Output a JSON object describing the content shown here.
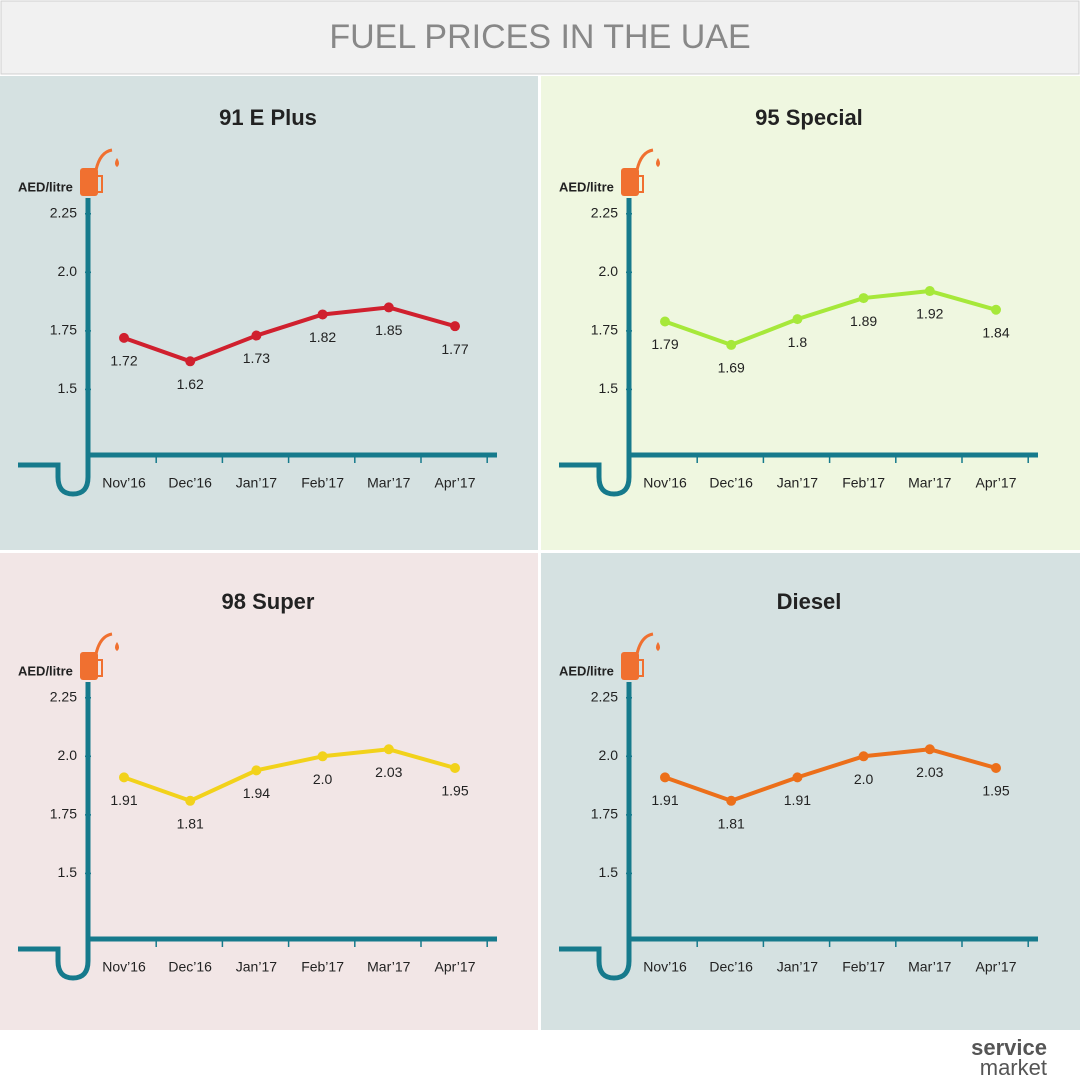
{
  "title": "FUEL PRICES IN THE UAE",
  "brand": [
    "service",
    "market"
  ],
  "chart_data": [
    {
      "type": "line",
      "title": "91 E Plus",
      "y_label": "AED/litre",
      "color": "#d0202e",
      "categories": [
        "Nov’16",
        "Dec’16",
        "Jan’17",
        "Feb’17",
        "Mar’17",
        "Apr’17"
      ],
      "values": [
        1.72,
        1.62,
        1.73,
        1.82,
        1.85,
        1.77
      ],
      "ylim": [
        1.22,
        2.33
      ],
      "yticks": [
        1.5,
        1.75,
        {
          "value": 2,
          "label": "2.0"
        },
        2.25
      ],
      "grid": false
    },
    {
      "type": "line",
      "title": "95 Special",
      "y_label": "AED/litre",
      "color": "#a6e83a",
      "categories": [
        "Nov’16",
        "Dec’16",
        "Jan’17",
        "Feb’17",
        "Mar’17",
        "Apr’17"
      ],
      "values": [
        1.79,
        1.69,
        1.8,
        1.89,
        1.92,
        1.84
      ],
      "ylim": [
        1.22,
        2.33
      ],
      "yticks": [
        1.5,
        1.75,
        {
          "value": 2,
          "label": "2.0"
        },
        2.25
      ],
      "grid": false
    },
    {
      "type": "line",
      "title": "98 Super",
      "y_label": "AED/litre",
      "color": "#f2d21b",
      "categories": [
        "Nov’16",
        "Dec’16",
        "Jan’17",
        "Feb’17",
        "Mar’17",
        "Apr’17"
      ],
      "values": [
        1.91,
        1.81,
        1.94,
        2,
        2.03,
        1.95
      ],
      "value_labels": [
        "1.91",
        "1.81",
        "1.94",
        "2.0",
        "2.03",
        "1.95"
      ],
      "ylim": [
        1.22,
        2.33
      ],
      "yticks": [
        1.5,
        1.75,
        {
          "value": 2,
          "label": "2.0"
        },
        2.25
      ],
      "grid": false
    },
    {
      "type": "line",
      "title": "Diesel",
      "y_label": "AED/litre",
      "color": "#ec6f1a",
      "categories": [
        "Nov’16",
        "Dec’16",
        "Jan’17",
        "Feb’17",
        "Mar’17",
        "Apr’17"
      ],
      "values": [
        1.91,
        1.81,
        1.91,
        2,
        2.03,
        1.95
      ],
      "value_labels": [
        "1.91",
        "1.81",
        "1.91",
        "2.0",
        "2.03",
        "1.95"
      ],
      "ylim": [
        1.22,
        2.33
      ],
      "yticks": [
        1.5,
        1.75,
        {
          "value": 2,
          "label": "2.0"
        },
        2.25
      ],
      "grid": false
    }
  ]
}
